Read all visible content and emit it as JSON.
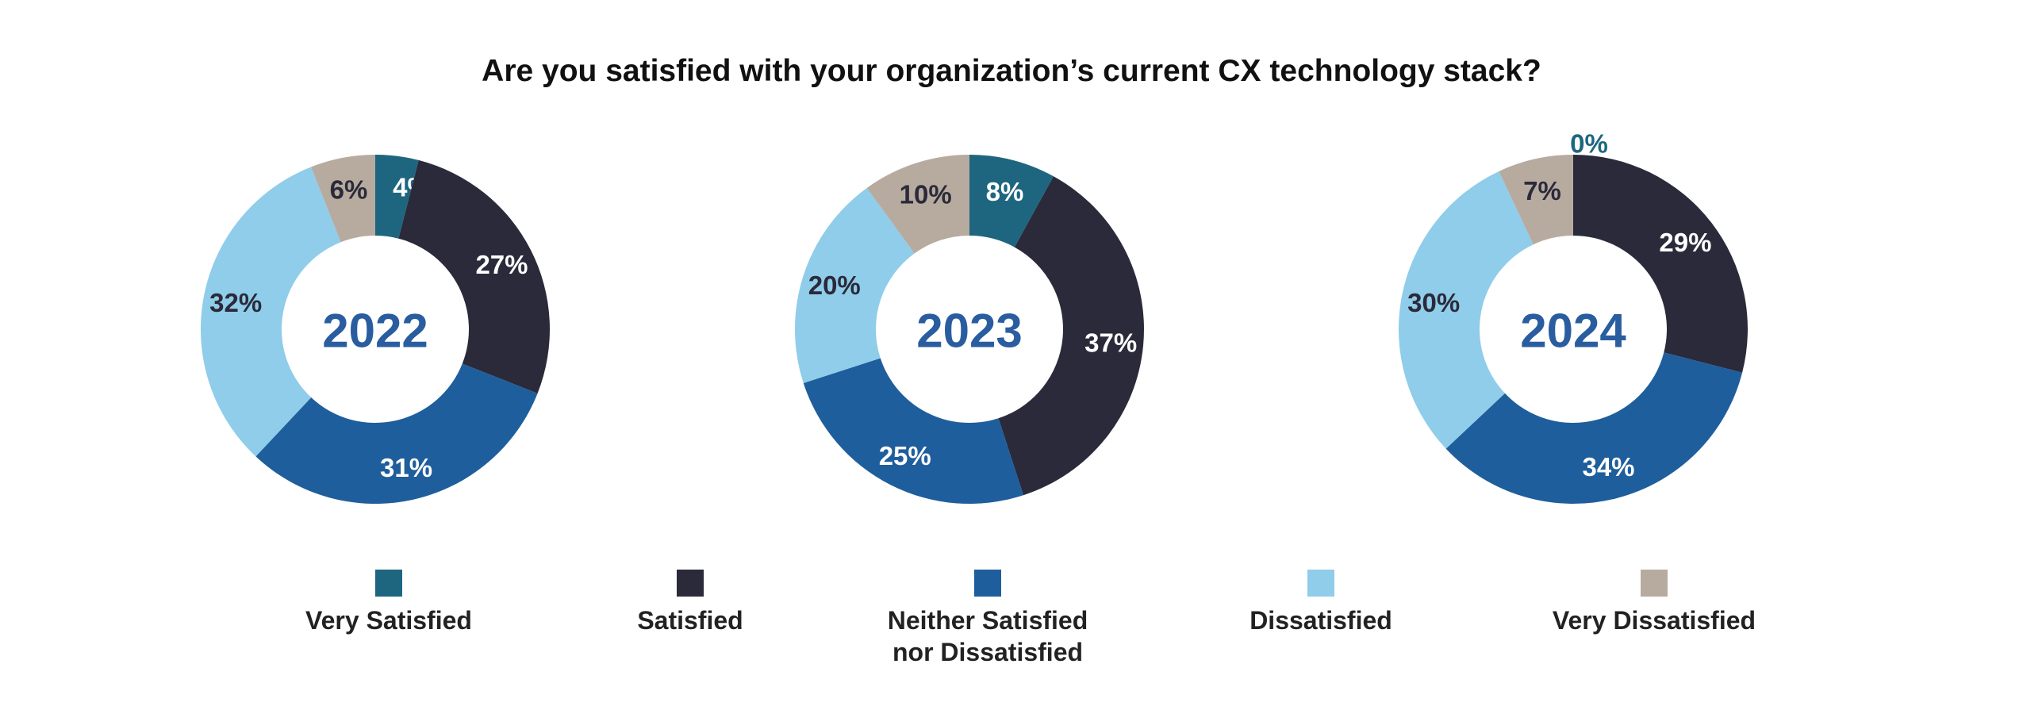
{
  "title": "Are you satisfied with your organization’s current CX technology stack?",
  "legend": [
    {
      "name": "Very Satisfied",
      "color": "#1e6680"
    },
    {
      "name": "Satisfied",
      "color": "#2b2a3a"
    },
    {
      "name": "Neither Satisfied nor Dissatisfied",
      "color": "#1f5e9c"
    },
    {
      "name": "Dissatisfied",
      "color": "#8fcdea"
    },
    {
      "name": "Very Dissatisfied",
      "color": "#b7aba0"
    }
  ],
  "chart_data": [
    {
      "type": "pie",
      "title": "2022",
      "categories": [
        "Very Satisfied",
        "Satisfied",
        "Neither Satisfied nor Dissatisfied",
        "Dissatisfied",
        "Very Dissatisfied"
      ],
      "values": [
        4,
        27,
        31,
        32,
        6
      ],
      "labels": [
        "4%",
        "27%",
        "31%",
        "32%",
        "6%"
      ]
    },
    {
      "type": "pie",
      "title": "2023",
      "categories": [
        "Very Satisfied",
        "Satisfied",
        "Neither Satisfied nor Dissatisfied",
        "Dissatisfied",
        "Very Dissatisfied"
      ],
      "values": [
        8,
        37,
        25,
        20,
        10
      ],
      "labels": [
        "8%",
        "37%",
        "25%",
        "20%",
        "10%"
      ]
    },
    {
      "type": "pie",
      "title": "2024",
      "categories": [
        "Very Satisfied",
        "Satisfied",
        "Neither Satisfied nor Dissatisfied",
        "Dissatisfied",
        "Very Dissatisfied"
      ],
      "values": [
        0,
        29,
        34,
        30,
        7
      ],
      "labels": [
        "0%",
        "29%",
        "34%",
        "30%",
        "7%"
      ]
    }
  ]
}
